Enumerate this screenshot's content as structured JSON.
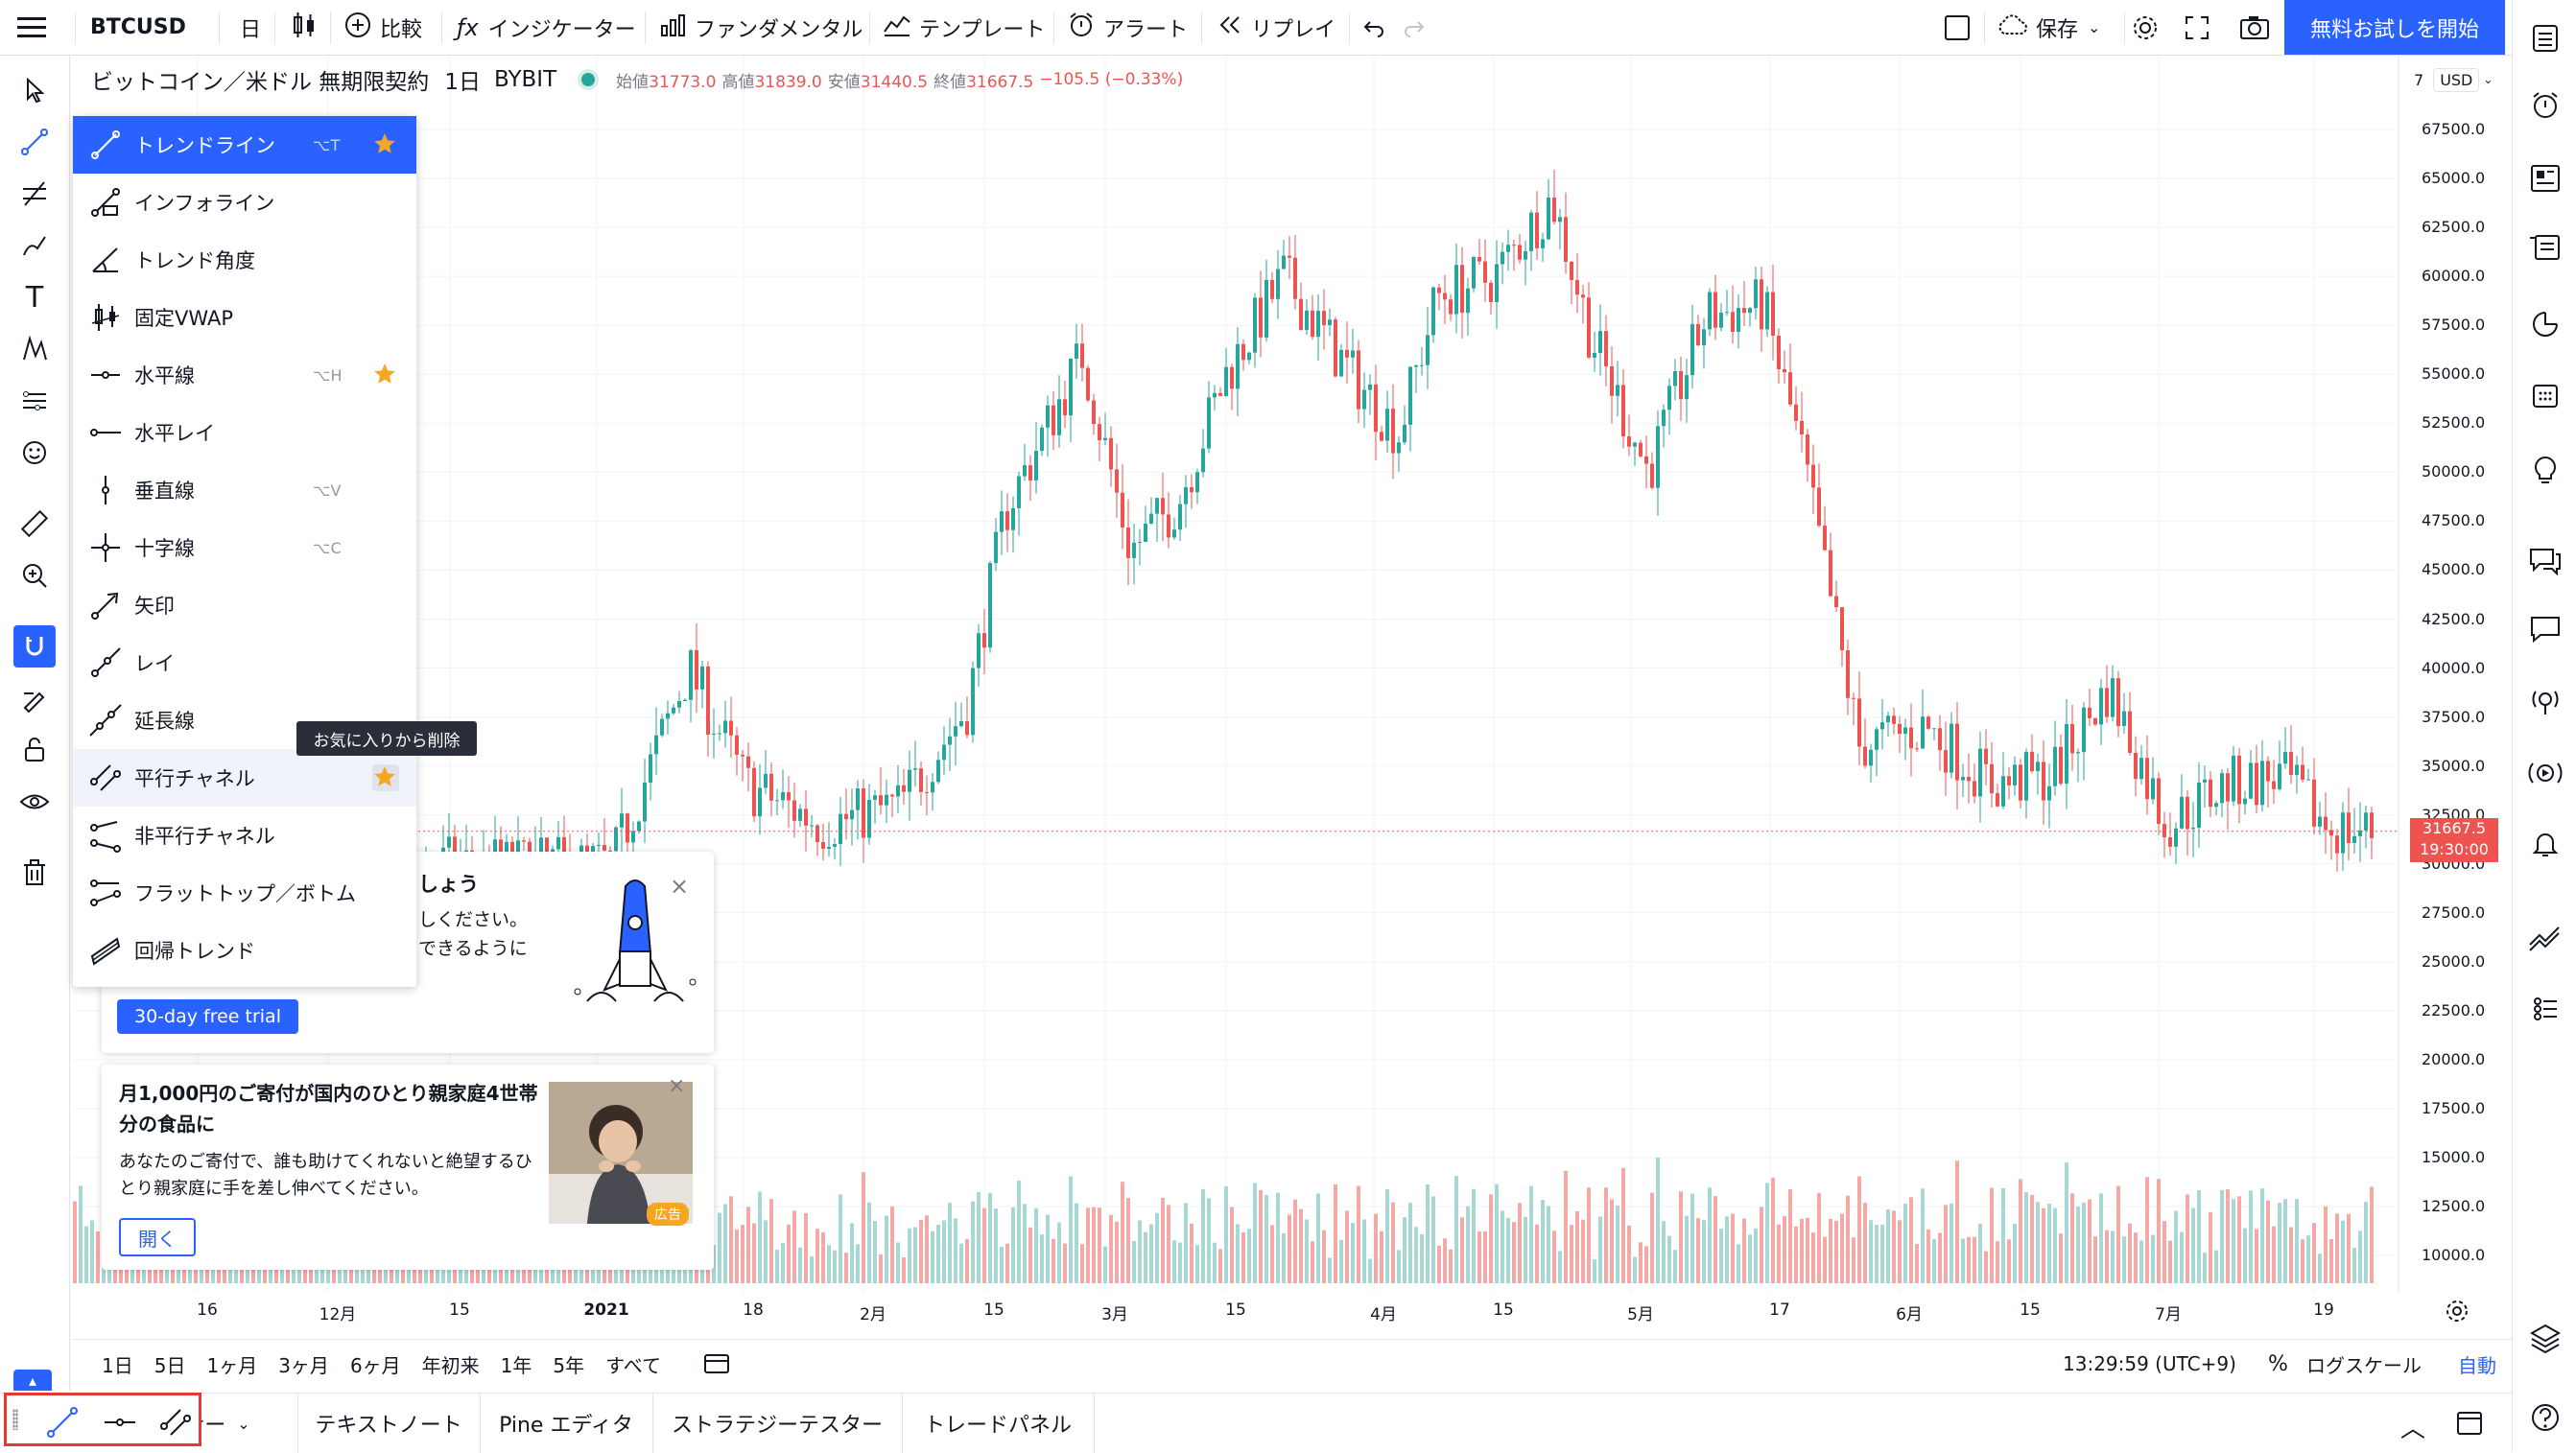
{
  "topbar": {
    "symbol": "BTCUSD",
    "interval": "日",
    "compare": "比較",
    "indicators": "インジケーター",
    "fundamentals": "ファンダメンタル",
    "templates": "テンプレート",
    "alert": "アラート",
    "replay": "リプレイ",
    "save": "保存",
    "trial": "無料お試しを開始"
  },
  "legend": {
    "title": "ビットコイン／米ドル 無期限契約",
    "interval": "1日",
    "exchange": "BYBIT",
    "open_label": "始値",
    "open": "31773.0",
    "high_label": "高値",
    "high": "31839.0",
    "low_label": "安値",
    "low": "31440.5",
    "close_label": "終値",
    "close": "31667.5",
    "change": "−105.5 (−0.33%)"
  },
  "dropdown": {
    "items": [
      {
        "label": "トレンドライン",
        "shortcut": "⌥T",
        "favorite": true,
        "active": true,
        "icon": "trend-line-icon"
      },
      {
        "label": "インフォライン",
        "shortcut": "",
        "favorite": false,
        "icon": "info-line-icon"
      },
      {
        "label": "トレンド角度",
        "shortcut": "",
        "favorite": false,
        "icon": "trend-angle-icon"
      },
      {
        "label": "固定VWAP",
        "shortcut": "",
        "favorite": false,
        "icon": "anchored-vwap-icon"
      },
      {
        "label": "水平線",
        "shortcut": "⌥H",
        "favorite": true,
        "icon": "horizontal-line-icon"
      },
      {
        "label": "水平レイ",
        "shortcut": "",
        "favorite": false,
        "icon": "horizontal-ray-icon"
      },
      {
        "label": "垂直線",
        "shortcut": "⌥V",
        "favorite": false,
        "icon": "vertical-line-icon"
      },
      {
        "label": "十字線",
        "shortcut": "⌥C",
        "favorite": false,
        "icon": "cross-line-icon"
      },
      {
        "label": "矢印",
        "shortcut": "",
        "favorite": false,
        "icon": "arrow-icon"
      },
      {
        "label": "レイ",
        "shortcut": "",
        "favorite": false,
        "icon": "ray-icon"
      },
      {
        "label": "延長線",
        "shortcut": "",
        "favorite": false,
        "icon": "extended-line-icon"
      },
      {
        "label": "平行チャネル",
        "shortcut": "",
        "favorite": true,
        "hover": true,
        "icon": "parallel-channel-icon"
      },
      {
        "label": "非平行チャネル",
        "shortcut": "",
        "favorite": false,
        "icon": "disjoint-channel-icon"
      },
      {
        "label": "フラットトップ／ボトム",
        "shortcut": "",
        "favorite": false,
        "icon": "flat-top-bottom-icon"
      },
      {
        "label": "回帰トレンド",
        "shortcut": "",
        "favorite": false,
        "icon": "regression-trend-icon"
      }
    ],
    "tooltip": "お気に入りから削除"
  },
  "promo": {
    "title_partial": "しょう",
    "line1_partial": "しください。",
    "line2_partial": "できるように",
    "button": "30-day free trial"
  },
  "ad": {
    "title": "月1,000円のご寄付が国内のひとり親家庭4世帯分の食品に",
    "body": "あなたのご寄付で、誰も助けてくれないと絶望するひとり親家庭に手を差し伸べてください。",
    "button": "開く",
    "badge": "広告"
  },
  "price_axis": {
    "currency": "USD",
    "labels": [
      "67500.0",
      "65000.0",
      "62500.0",
      "60000.0",
      "57500.0",
      "55000.0",
      "52500.0",
      "50000.0",
      "47500.0",
      "45000.0",
      "42500.0",
      "40000.0",
      "37500.0",
      "35000.0",
      "32500.0",
      "30000.0",
      "27500.0",
      "25000.0",
      "22500.0",
      "20000.0",
      "17500.0",
      "15000.0",
      "12500.0",
      "10000.0"
    ],
    "current_price": "31667.5",
    "countdown": "19:30:00",
    "top_marker": "7"
  },
  "time_axis": {
    "labels": [
      "16",
      "12月",
      "15",
      "2021",
      "18",
      "2月",
      "15",
      "3月",
      "15",
      "4月",
      "15",
      "5月",
      "17",
      "6月",
      "15",
      "7月",
      "19"
    ]
  },
  "range_bar": {
    "ranges": [
      "1日",
      "5日",
      "1ヶ月",
      "3ヶ月",
      "6ヶ月",
      "年初来",
      "1年",
      "5年",
      "すべて"
    ],
    "clock": "13:29:59 (UTC+9)",
    "percent": "%",
    "log": "ログスケール",
    "auto": "自動"
  },
  "bottom_panel": {
    "tabs": [
      "ーナー",
      "テキストノート",
      "Pine エディタ",
      "ストラテジーテスター",
      "トレードパネル"
    ]
  },
  "colors": {
    "accent": "#2962ff",
    "up": "#26a69a",
    "down": "#ef5350",
    "highlight_box": "#e53935"
  }
}
